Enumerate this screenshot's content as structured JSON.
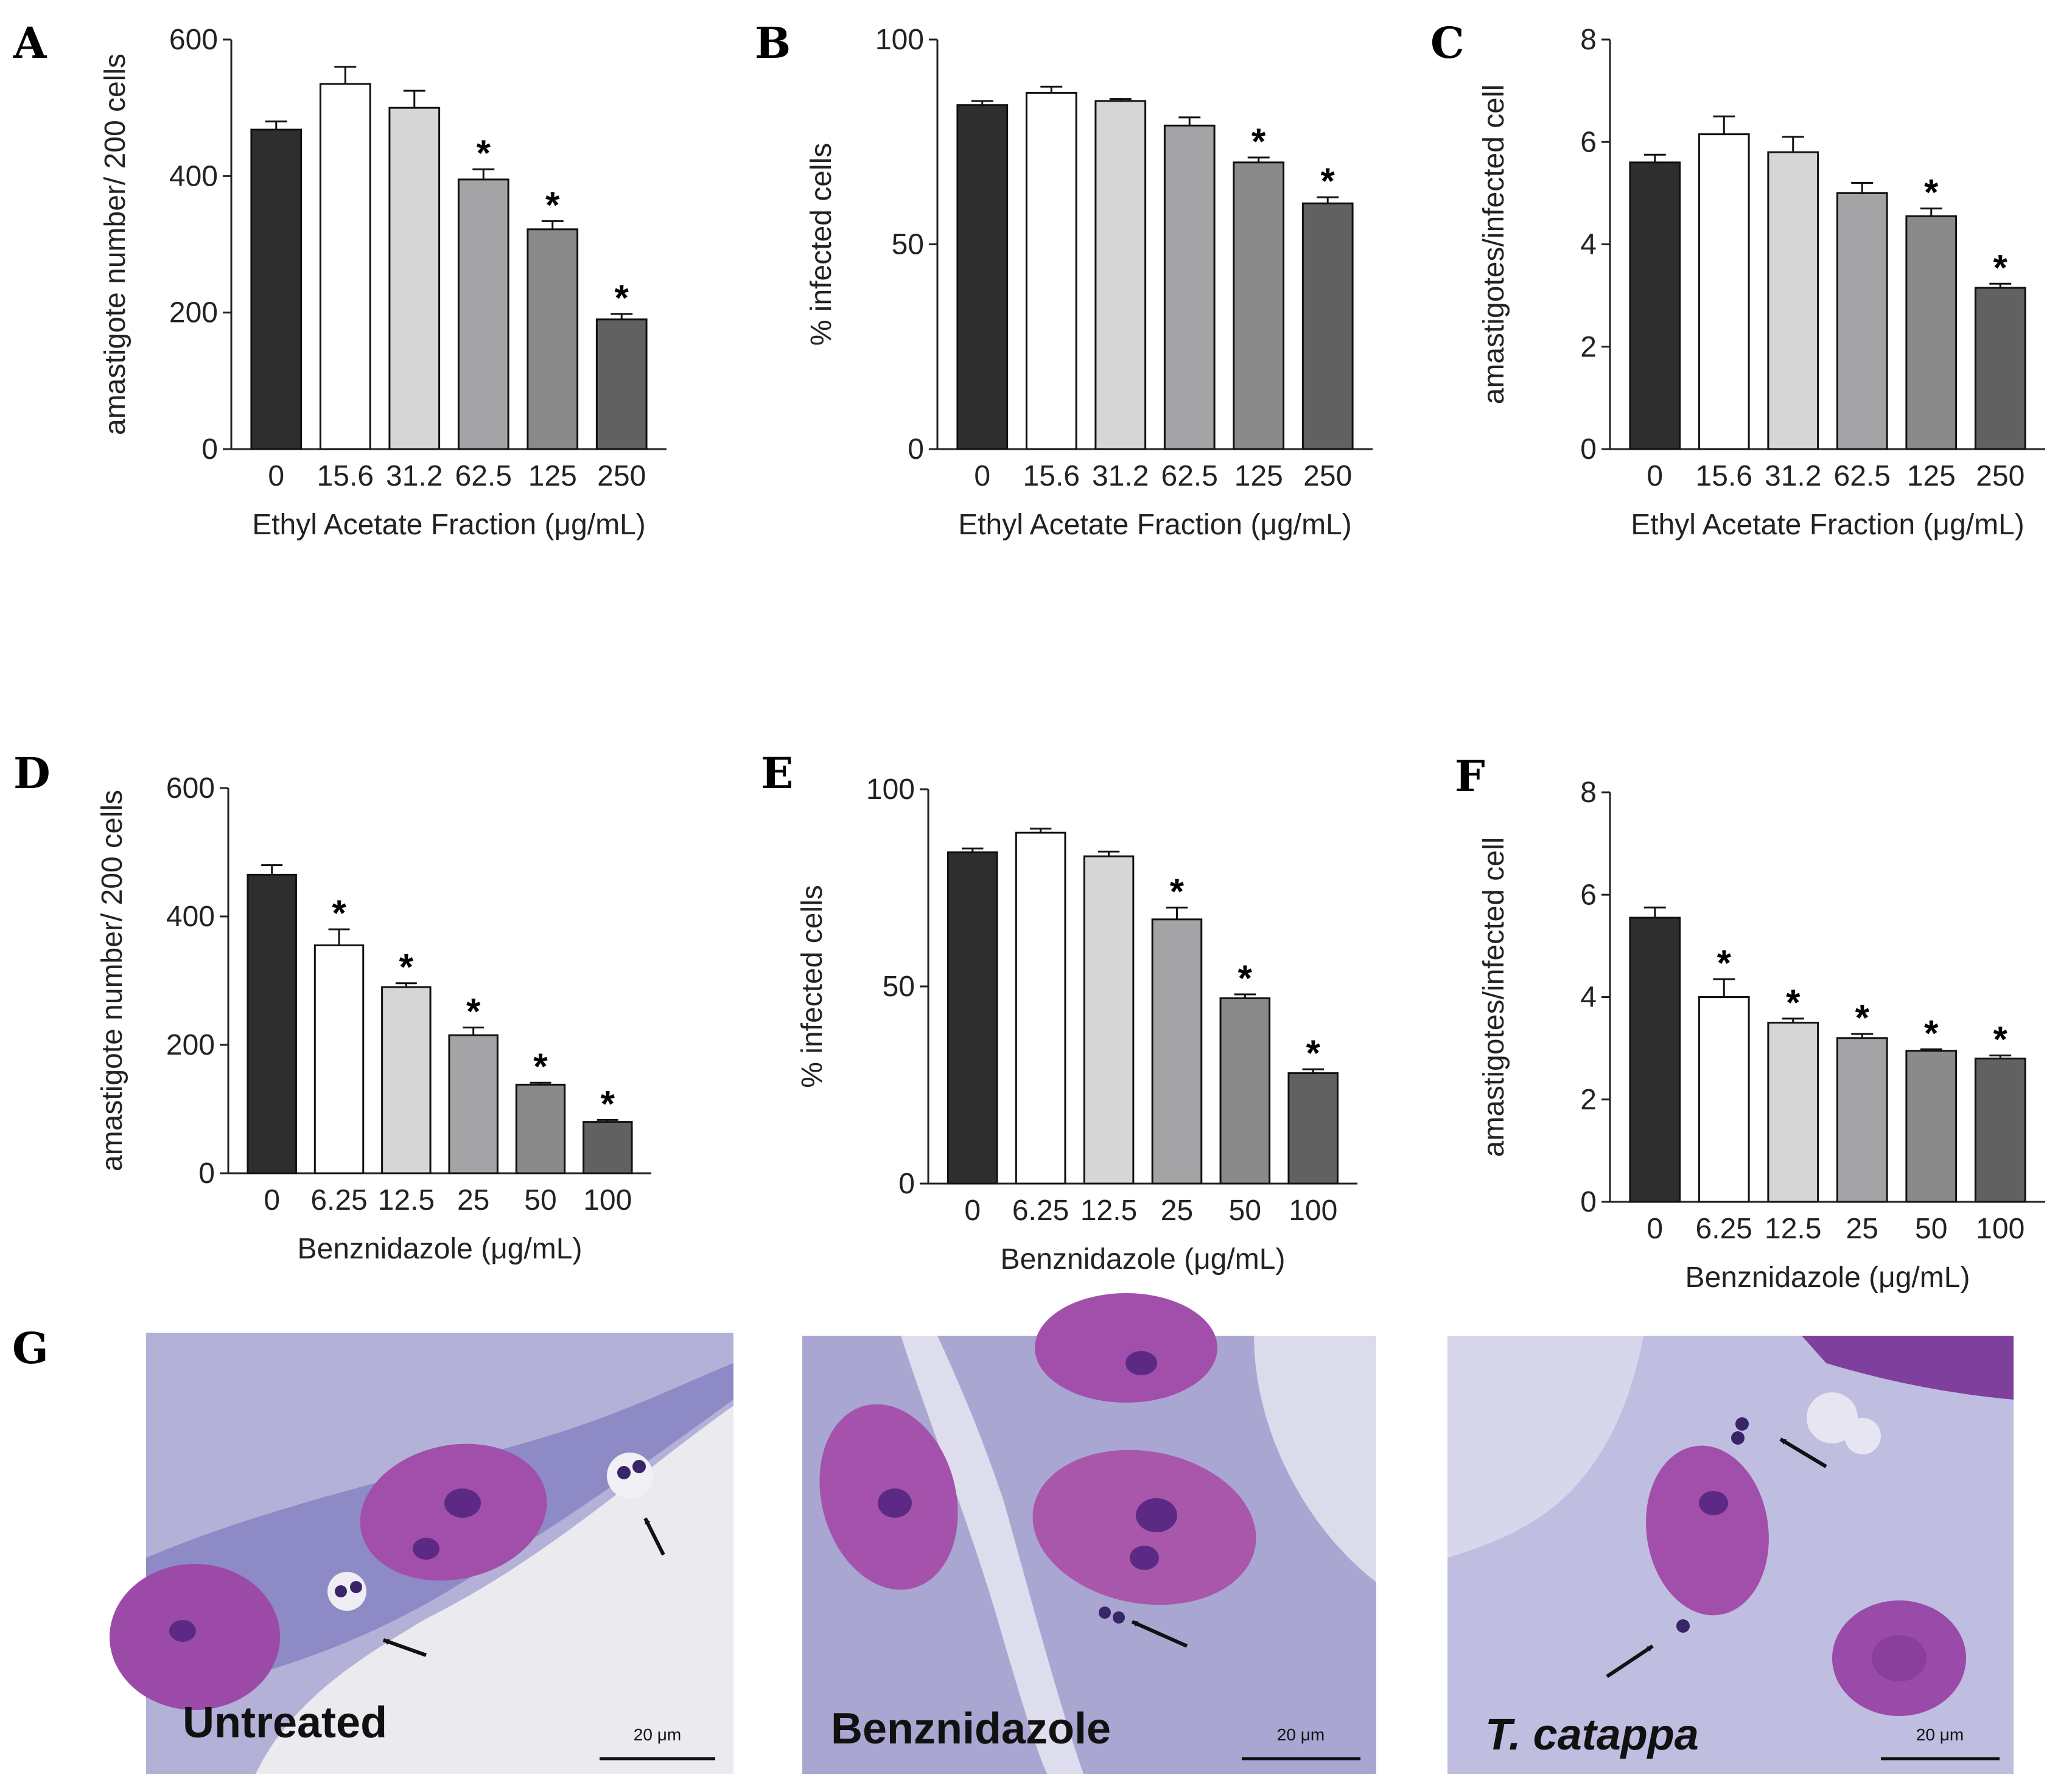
{
  "chart_data": [
    {
      "id": "A",
      "type": "bar",
      "panel_label": "A",
      "title": "",
      "categories": [
        "0",
        "15.6",
        "31.2",
        "62.5",
        "125",
        "250"
      ],
      "values": [
        468,
        535,
        500,
        395,
        322,
        190
      ],
      "errors": [
        12,
        25,
        25,
        15,
        12,
        8
      ],
      "significant": [
        false,
        false,
        false,
        true,
        true,
        true
      ],
      "bar_colors": [
        "#2e2e2e",
        "#ffffff",
        "#d6d6d6",
        "#a4a4a7",
        "#8a8a8a",
        "#616161"
      ],
      "xlabel": "Ethyl Acetate Fraction (μg/mL)",
      "ylabel": "amastigote number/ 200 cells",
      "ylim": [
        0,
        600
      ],
      "yticks": [
        0,
        200,
        400,
        600
      ]
    },
    {
      "id": "B",
      "type": "bar",
      "panel_label": "B",
      "title": "",
      "categories": [
        "0",
        "15.6",
        "31.2",
        "62.5",
        "125",
        "250"
      ],
      "values": [
        84,
        87,
        85,
        79,
        70,
        60
      ],
      "errors": [
        1,
        1.5,
        0.5,
        2,
        1.2,
        1.5
      ],
      "significant": [
        false,
        false,
        false,
        false,
        true,
        true
      ],
      "bar_colors": [
        "#2e2e2e",
        "#ffffff",
        "#d6d6d6",
        "#a4a4a7",
        "#8a8a8a",
        "#616161"
      ],
      "xlabel": "Ethyl Acetate Fraction (μg/mL)",
      "ylabel": "% infected cells",
      "ylim": [
        0,
        100
      ],
      "yticks": [
        0,
        50,
        100
      ]
    },
    {
      "id": "C",
      "type": "bar",
      "panel_label": "C",
      "title": "",
      "categories": [
        "0",
        "15.6",
        "31.2",
        "62.5",
        "125",
        "250"
      ],
      "values": [
        5.6,
        6.15,
        5.8,
        5.0,
        4.55,
        3.15
      ],
      "errors": [
        0.15,
        0.35,
        0.3,
        0.2,
        0.15,
        0.08
      ],
      "significant": [
        false,
        false,
        false,
        false,
        true,
        true
      ],
      "bar_colors": [
        "#2e2e2e",
        "#ffffff",
        "#d6d6d6",
        "#a4a4a7",
        "#8a8a8a",
        "#616161"
      ],
      "xlabel": "Ethyl Acetate Fraction (μg/mL)",
      "ylabel": "amastigotes/infected cell",
      "ylim": [
        0,
        8
      ],
      "yticks": [
        0,
        2,
        4,
        6,
        8
      ]
    },
    {
      "id": "D",
      "type": "bar",
      "panel_label": "D",
      "title": "",
      "categories": [
        "0",
        "6.25",
        "12.5",
        "25",
        "50",
        "100"
      ],
      "values": [
        465,
        355,
        290,
        215,
        138,
        80
      ],
      "errors": [
        15,
        25,
        6,
        12,
        3,
        3
      ],
      "significant": [
        false,
        true,
        true,
        true,
        true,
        true
      ],
      "bar_colors": [
        "#2e2e2e",
        "#ffffff",
        "#d6d6d6",
        "#a4a4a7",
        "#8a8a8a",
        "#616161"
      ],
      "xlabel": "Benznidazole (μg/mL)",
      "ylabel": "amastigote number/ 200 cells",
      "ylim": [
        0,
        600
      ],
      "yticks": [
        0,
        200,
        400,
        600
      ]
    },
    {
      "id": "E",
      "type": "bar",
      "panel_label": "E",
      "title": "",
      "categories": [
        "0",
        "6.25",
        "12.5",
        "25",
        "50",
        "100"
      ],
      "values": [
        84,
        89,
        83,
        67,
        47,
        28
      ],
      "errors": [
        1,
        1,
        1.2,
        3,
        1,
        1
      ],
      "significant": [
        false,
        false,
        false,
        true,
        true,
        true
      ],
      "bar_colors": [
        "#2e2e2e",
        "#ffffff",
        "#d6d6d6",
        "#a4a4a7",
        "#8a8a8a",
        "#616161"
      ],
      "xlabel": "Benznidazole (μg/mL)",
      "ylabel": "% infected cells",
      "ylim": [
        0,
        100
      ],
      "yticks": [
        0,
        50,
        100
      ]
    },
    {
      "id": "F",
      "type": "bar",
      "panel_label": "F",
      "title": "",
      "categories": [
        "0",
        "6.25",
        "12.5",
        "25",
        "50",
        "100"
      ],
      "values": [
        5.55,
        4.0,
        3.5,
        3.2,
        2.95,
        2.8
      ],
      "errors": [
        0.2,
        0.35,
        0.08,
        0.08,
        0.03,
        0.06
      ],
      "significant": [
        false,
        true,
        true,
        true,
        true,
        true
      ],
      "bar_colors": [
        "#2e2e2e",
        "#ffffff",
        "#d6d6d6",
        "#a4a4a7",
        "#8a8a8a",
        "#616161"
      ],
      "xlabel": "Benznidazole (μg/mL)",
      "ylabel": "amastigotes/infected cell",
      "ylim": [
        0,
        8
      ],
      "yticks": [
        0,
        2,
        4,
        6,
        8
      ]
    }
  ],
  "significance_marker": "*",
  "micrographs": {
    "panel_label": "G",
    "images": [
      {
        "label": "Untreated",
        "italic": false,
        "scale_bar": "20 μm"
      },
      {
        "label": "Benznidazole",
        "italic": false,
        "scale_bar": "20 μm"
      },
      {
        "label": "T. catappa",
        "italic": true,
        "scale_bar": "20 μm"
      }
    ]
  },
  "colors": {
    "stain_background": "#b6b4dc",
    "cytoplasm": "#8f8cc8",
    "nucleus": "#a552ad",
    "nucleolus": "#5d2a84",
    "parasite": "#3a2468",
    "empty_area": "#e9e8ef"
  }
}
